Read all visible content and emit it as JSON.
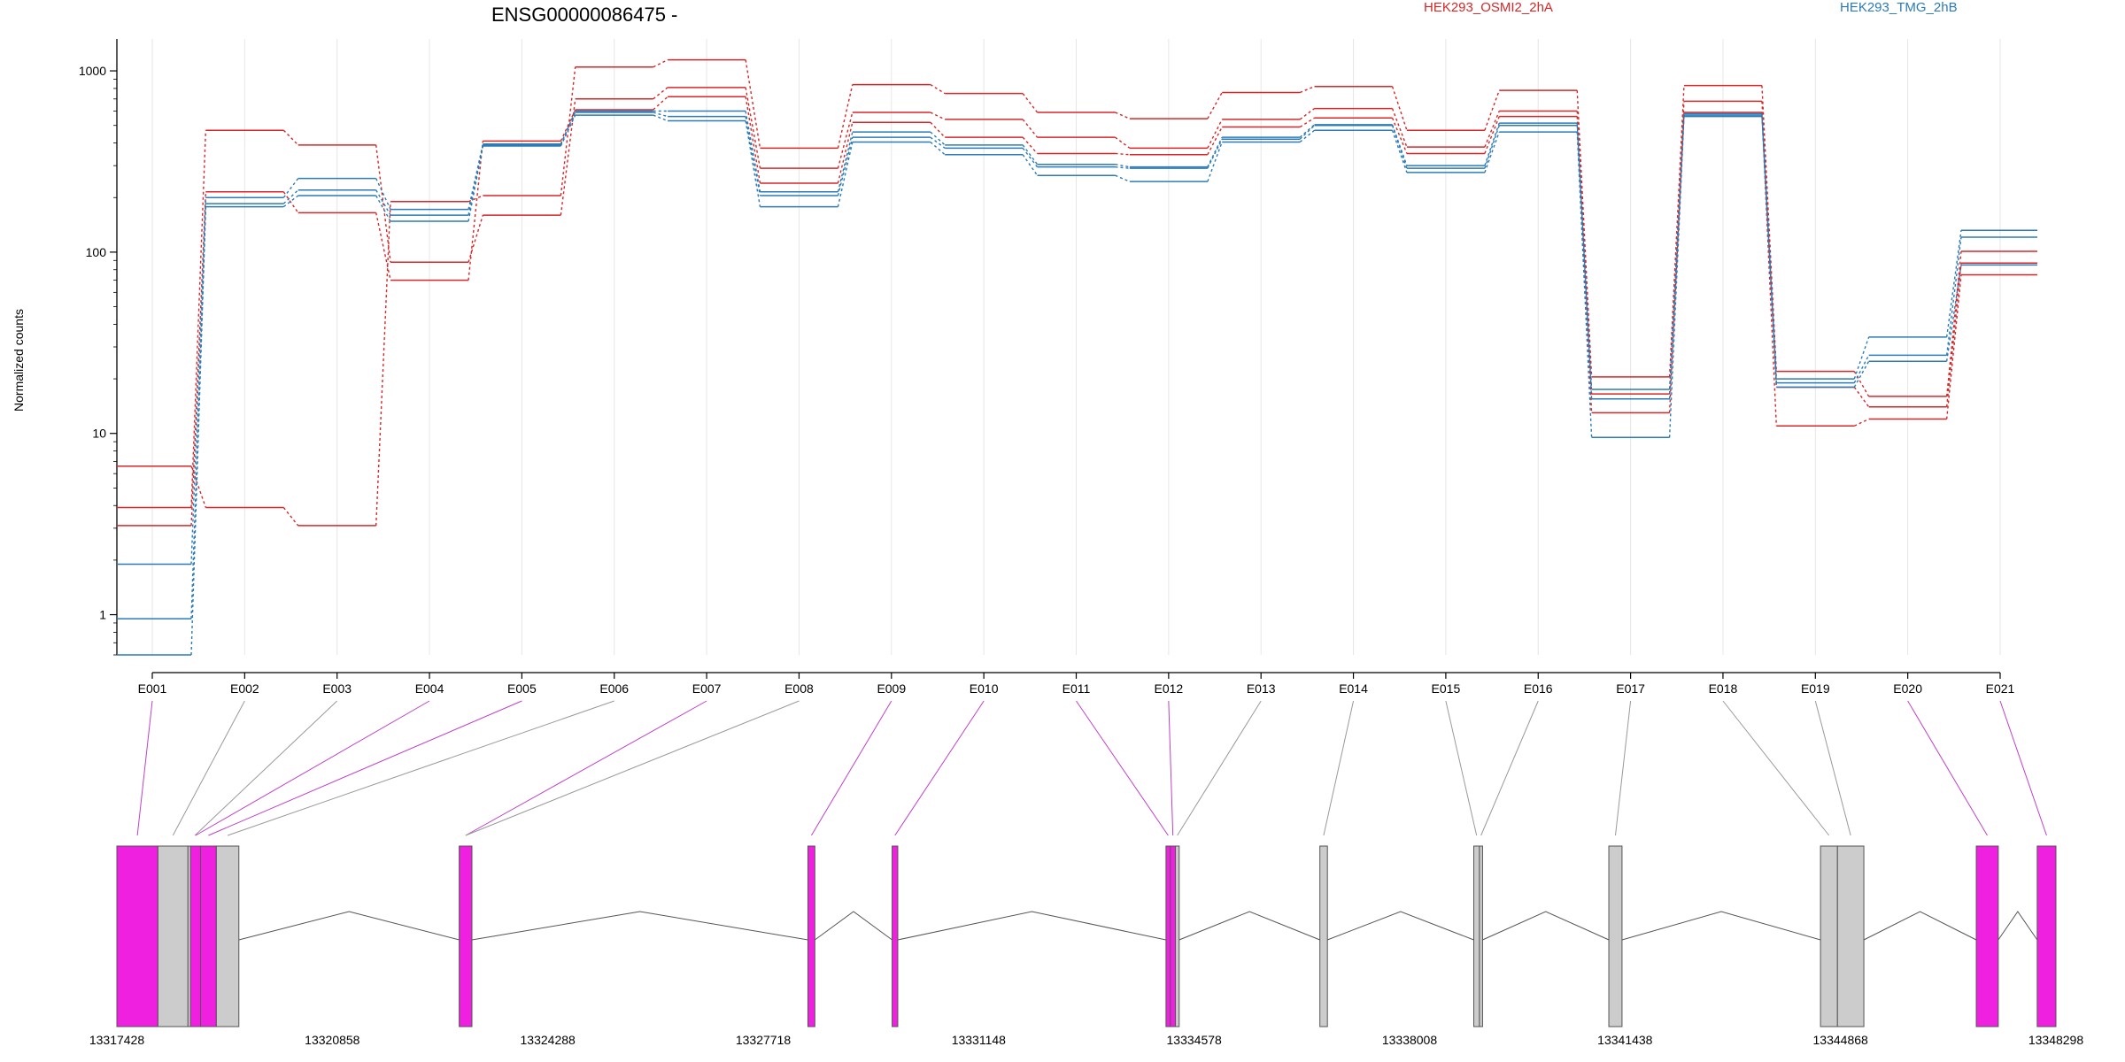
{
  "chart_data": {
    "type": "line",
    "title": "ENSG00000086475 -",
    "ylabel": "Normalized counts",
    "xlabel": "",
    "yscale": "log",
    "ylim": [
      0.6,
      1500
    ],
    "yticks": [
      1,
      10,
      100,
      1000
    ],
    "ytick_labels": [
      "1",
      "10",
      "100",
      "1000"
    ],
    "grid": "vertical",
    "legend_placement": "top-right",
    "categories": [
      "E001",
      "E002",
      "E003",
      "E004",
      "E005",
      "E006",
      "E007",
      "E008",
      "E009",
      "E010",
      "E011",
      "E012",
      "E013",
      "E014",
      "E015",
      "E016",
      "E017",
      "E018",
      "E019",
      "E020",
      "E021"
    ],
    "groups": [
      {
        "name": "HEK293_OSMI2_2hA",
        "color": "#d62728"
      },
      {
        "name": "HEK293_TMG_2hB",
        "color": "#2c7bb6"
      }
    ],
    "series": [
      {
        "group": "HEK293_OSMI2_2hA",
        "values": [
          6.6,
          3.9,
          3.1,
          190,
          205,
          1050,
          1150,
          375,
          840,
          750,
          590,
          545,
          760,
          820,
          470,
          780,
          20.5,
          830,
          22,
          16,
          101
        ]
      },
      {
        "group": "HEK293_OSMI2_2hA",
        "values": [
          3.9,
          470,
          390,
          88,
          160,
          700,
          810,
          290,
          590,
          540,
          430,
          375,
          540,
          620,
          380,
          600,
          16.5,
          680,
          18,
          14,
          87
        ]
      },
      {
        "group": "HEK293_OSMI2_2hA",
        "values": [
          3.1,
          215,
          165,
          70,
          410,
          610,
          720,
          240,
          520,
          430,
          350,
          345,
          490,
          550,
          350,
          560,
          13,
          590,
          11,
          12,
          75
        ]
      },
      {
        "group": "HEK293_TMG_2hB",
        "values": [
          1.9,
          200,
          255,
          172,
          395,
          600,
          600,
          215,
          460,
          390,
          305,
          295,
          430,
          505,
          300,
          515,
          17.5,
          580,
          20,
          34,
          132
        ]
      },
      {
        "group": "HEK293_TMG_2hB",
        "values": [
          0.95,
          185,
          220,
          160,
          390,
          590,
          560,
          205,
          430,
          375,
          295,
          290,
          420,
          500,
          290,
          500,
          15.5,
          570,
          19,
          27,
          121
        ]
      },
      {
        "group": "HEK293_TMG_2hB",
        "values": [
          0.6,
          178,
          205,
          148,
          385,
          570,
          530,
          178,
          405,
          345,
          265,
          245,
          405,
          470,
          275,
          460,
          9.5,
          560,
          18,
          25,
          85
        ]
      }
    ],
    "gene_model": {
      "start_label": "13317428",
      "end_label": "13348298",
      "start": 13317428,
      "end": 13348298,
      "coordinate_ticks": [
        "13317428",
        "13320858",
        "13324288",
        "13327718",
        "13331148",
        "13334578",
        "13338008",
        "13341438",
        "13344868",
        "13348298"
      ],
      "colors": {
        "significant": "#f020e0",
        "not_significant": "#cccccc",
        "outline": "#555555"
      },
      "exons": [
        {
          "id": "E001",
          "start": 13317428,
          "end": 13318080,
          "significant": true
        },
        {
          "id": "E002",
          "start": 13318080,
          "end": 13318560,
          "significant": false
        },
        {
          "id": "E003",
          "start": 13318560,
          "end": 13318780,
          "significant": false
        },
        {
          "id": "E004",
          "start": 13318600,
          "end": 13318760,
          "significant": true
        },
        {
          "id": "E005",
          "start": 13318760,
          "end": 13319010,
          "significant": true
        },
        {
          "id": "E006",
          "start": 13319010,
          "end": 13319370,
          "significant": false
        },
        {
          "id": "E007",
          "start": 13322880,
          "end": 13323080,
          "significant": true
        },
        {
          "id": "E008",
          "start": 13322880,
          "end": 13323080,
          "significant": false
        },
        {
          "id": "E009",
          "start": 13328430,
          "end": 13328540,
          "significant": true
        },
        {
          "id": "E010",
          "start": 13329770,
          "end": 13329860,
          "significant": true
        },
        {
          "id": "E011",
          "start": 13334130,
          "end": 13334200,
          "significant": true
        },
        {
          "id": "E012",
          "start": 13334200,
          "end": 13334280,
          "significant": true
        },
        {
          "id": "E013",
          "start": 13334280,
          "end": 13334340,
          "significant": false
        },
        {
          "id": "E014",
          "start": 13336580,
          "end": 13336700,
          "significant": false
        },
        {
          "id": "E015",
          "start": 13339030,
          "end": 13339120,
          "significant": false
        },
        {
          "id": "E016",
          "start": 13339120,
          "end": 13339170,
          "significant": false
        },
        {
          "id": "E017",
          "start": 13341180,
          "end": 13341390,
          "significant": false
        },
        {
          "id": "E018",
          "start": 13344550,
          "end": 13344820,
          "significant": false
        },
        {
          "id": "E019",
          "start": 13344820,
          "end": 13345240,
          "significant": false
        },
        {
          "id": "E020",
          "start": 13347030,
          "end": 13347380,
          "significant": true
        },
        {
          "id": "E021",
          "start": 13348000,
          "end": 13348298,
          "significant": true
        }
      ],
      "introns": [
        [
          13319370,
          13322880
        ],
        [
          13323080,
          13328430
        ],
        [
          13328540,
          13329770
        ],
        [
          13329860,
          13334130
        ],
        [
          13334340,
          13336580
        ],
        [
          13336700,
          13339030
        ],
        [
          13339170,
          13341180
        ],
        [
          13341390,
          13344550
        ],
        [
          13345240,
          13347030
        ],
        [
          13347380,
          13348000
        ]
      ]
    }
  }
}
